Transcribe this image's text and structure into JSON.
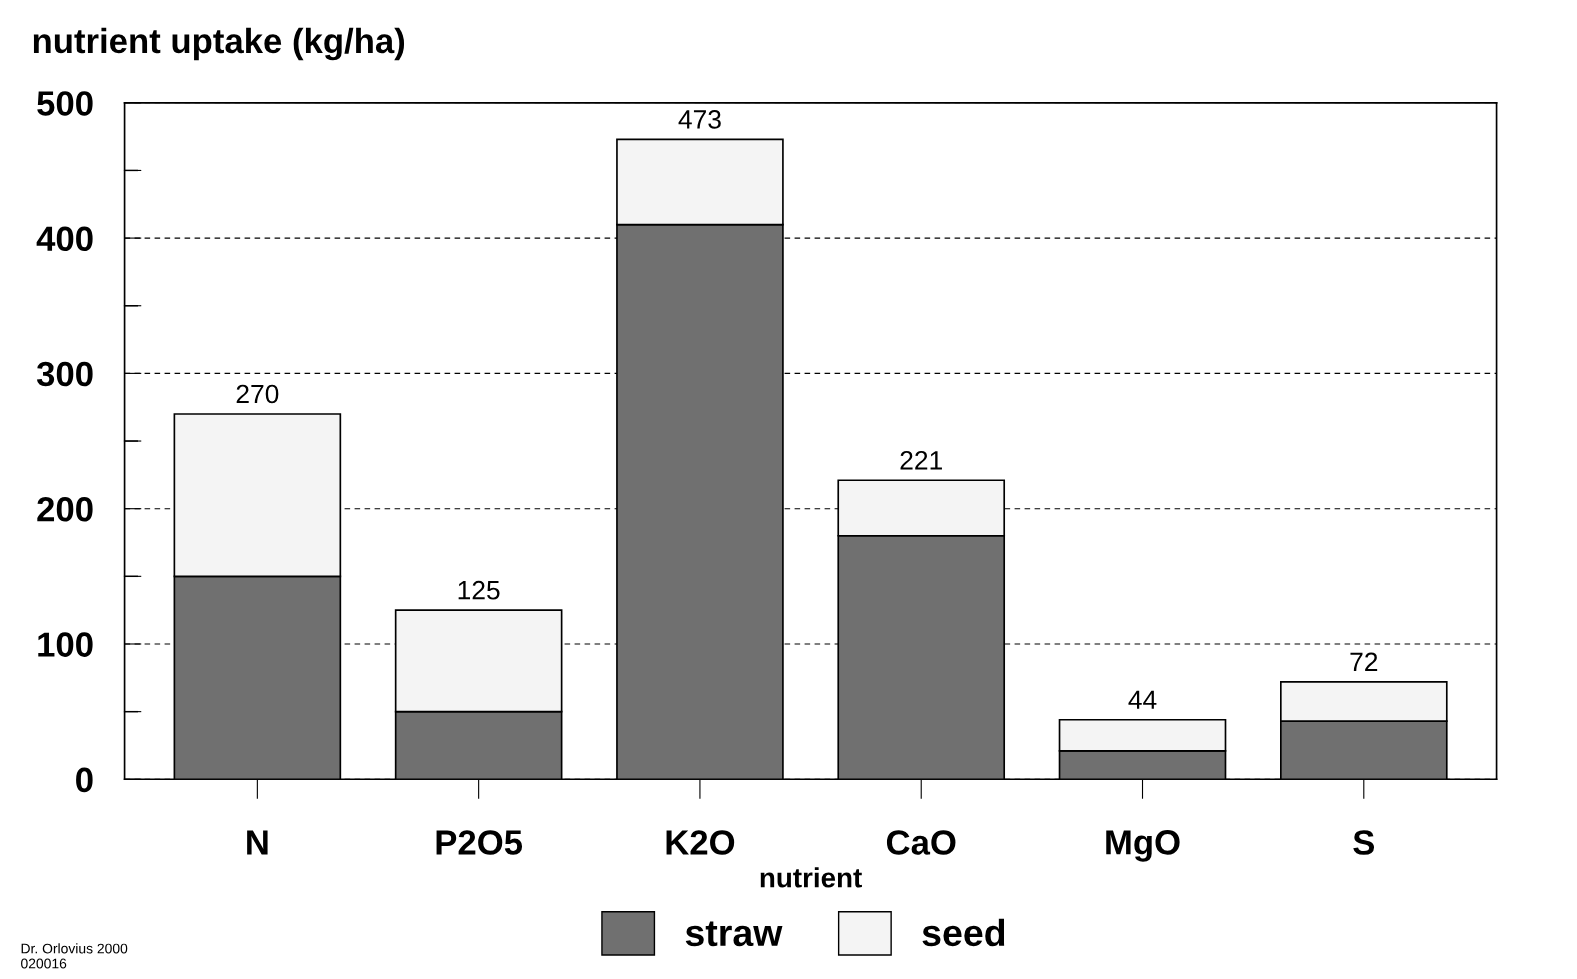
{
  "chart_data": {
    "type": "bar",
    "stacked": true,
    "title": "nutrient uptake (kg/ha)",
    "xlabel": "nutrient",
    "categories": [
      "N",
      "P2O5",
      "K2O",
      "CaO",
      "MgO",
      "S"
    ],
    "series": [
      {
        "name": "straw",
        "color": "#707070",
        "values": [
          150,
          50,
          410,
          180,
          21,
          43
        ]
      },
      {
        "name": "seed",
        "color": "#f4f4f4",
        "values": [
          120,
          75,
          63,
          41,
          23,
          29
        ]
      }
    ],
    "totals": [
      "270",
      "125",
      "473",
      "221",
      "44",
      "72"
    ],
    "ylim": [
      0,
      500
    ],
    "yticks": [
      0,
      {
        "value": 50,
        "label": null
      },
      100,
      {
        "value": 150,
        "label": null
      },
      200,
      {
        "value": 250,
        "label": null
      },
      300,
      {
        "value": 350,
        "label": null
      },
      400,
      {
        "value": 450,
        "label": null
      },
      500
    ],
    "grid": "y",
    "legend": "bottom",
    "annotations": [
      "Dr. Orlovius 2000\n020016"
    ]
  }
}
